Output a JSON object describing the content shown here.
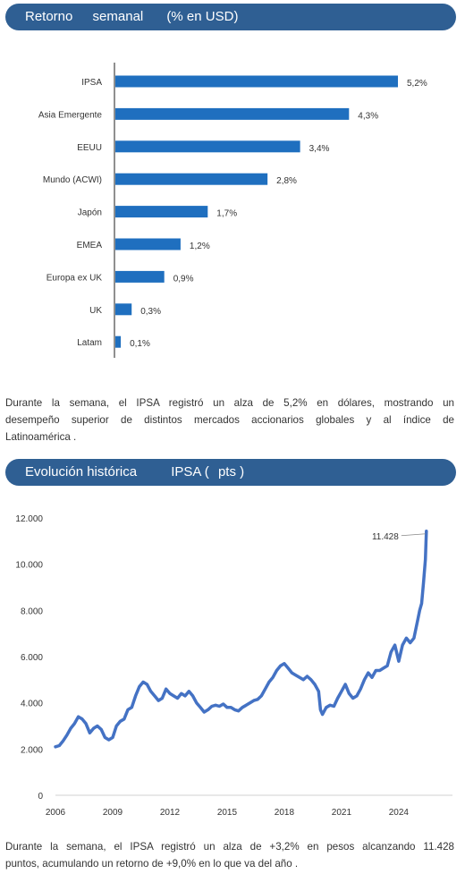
{
  "section1": {
    "title": "Retorno",
    "title2": "semanal",
    "title3": "(% en USD)"
  },
  "section2": {
    "title": "Evolución histórica",
    "title2": "IPSA (",
    "title3": "pts )"
  },
  "text1": {
    "line1": "Durante la semana, el IPSA registró un alza de 5,2% en dólares, mostrando un",
    "line2": "desempeño superior de distintos mercados accionarios globales y al índice de",
    "line3": "Latinoamérica ."
  },
  "text2": {
    "line1": "Durante la semana, el IPSA registró un alza de +3,2% en pesos alcanzando 11.428",
    "line2": "puntos, acumulando un retorno de +9,0% en lo que va del año ."
  },
  "colors": {
    "accent": "#2f5f93",
    "bar": "#1f6fbf",
    "line": "#4472c4"
  },
  "chart_data": [
    {
      "type": "bar",
      "orientation": "horizontal",
      "categories": [
        "IPSA",
        "Asia Emergente",
        "EEUU",
        "Mundo (ACWI)",
        "Japón",
        "EMEA",
        "Europa ex UK",
        "UK",
        "Latam"
      ],
      "values": [
        5.2,
        4.3,
        3.4,
        2.8,
        1.7,
        1.2,
        0.9,
        0.3,
        0.1
      ],
      "labels": [
        "5,2%",
        "4,3%",
        "3,4%",
        "2,8%",
        "1,7%",
        "1,2%",
        "0,9%",
        "0,3%",
        "0,1%"
      ],
      "xlim": [
        0,
        5.2
      ],
      "grid": false
    },
    {
      "type": "line",
      "yticks": [
        "0",
        "2.000",
        "4.000",
        "6.000",
        "8.000",
        "10.000",
        "12.000"
      ],
      "ytick_values": [
        0,
        2000,
        4000,
        6000,
        8000,
        10000,
        12000
      ],
      "xticks": [
        "2006",
        "2009",
        "2012",
        "2015",
        "2018",
        "2021",
        "2024"
      ],
      "xtick_values": [
        2006,
        2009,
        2012,
        2015,
        2018,
        2021,
        2024
      ],
      "ylim": [
        0,
        12000
      ],
      "xlim": [
        2006,
        2025.6
      ],
      "annotation": "11.428",
      "annotation_value": [
        2025.45,
        11428
      ],
      "grid": false,
      "series": [
        {
          "x": [
            2006.0,
            2006.2,
            2006.4,
            2006.6,
            2006.8,
            2007.0,
            2007.2,
            2007.4,
            2007.6,
            2007.8,
            2008.0,
            2008.2,
            2008.4,
            2008.6,
            2008.8,
            2009.0,
            2009.2,
            2009.4,
            2009.6,
            2009.8,
            2010.0,
            2010.2,
            2010.4,
            2010.6,
            2010.8,
            2011.0,
            2011.2,
            2011.4,
            2011.6,
            2011.8,
            2012.0,
            2012.2,
            2012.4,
            2012.6,
            2012.8,
            2013.0,
            2013.2,
            2013.4,
            2013.6,
            2013.8,
            2014.0,
            2014.2,
            2014.4,
            2014.6,
            2014.8,
            2015.0,
            2015.2,
            2015.4,
            2015.6,
            2015.8,
            2016.0,
            2016.2,
            2016.4,
            2016.6,
            2016.8,
            2017.0,
            2017.2,
            2017.4,
            2017.6,
            2017.8,
            2018.0,
            2018.2,
            2018.4,
            2018.6,
            2018.8,
            2019.0,
            2019.2,
            2019.4,
            2019.6,
            2019.8,
            2019.9,
            2020.0,
            2020.2,
            2020.4,
            2020.6,
            2020.8,
            2021.0,
            2021.2,
            2021.4,
            2021.6,
            2021.8,
            2022.0,
            2022.2,
            2022.4,
            2022.6,
            2022.8,
            2023.0,
            2023.2,
            2023.4,
            2023.6,
            2023.8,
            2024.0,
            2024.2,
            2024.4,
            2024.6,
            2024.8,
            2025.0,
            2025.1,
            2025.2,
            2025.3,
            2025.4,
            2025.45
          ],
          "values": [
            2100,
            2150,
            2350,
            2600,
            2900,
            3100,
            3400,
            3300,
            3100,
            2700,
            2900,
            3000,
            2850,
            2500,
            2400,
            2500,
            3000,
            3200,
            3300,
            3700,
            3800,
            4300,
            4700,
            4900,
            4800,
            4500,
            4300,
            4100,
            4200,
            4600,
            4400,
            4300,
            4200,
            4400,
            4300,
            4500,
            4300,
            4000,
            3800,
            3600,
            3700,
            3850,
            3900,
            3850,
            3950,
            3800,
            3800,
            3700,
            3650,
            3800,
            3900,
            4000,
            4100,
            4150,
            4300,
            4600,
            4900,
            5100,
            5400,
            5600,
            5700,
            5500,
            5300,
            5200,
            5100,
            5000,
            5150,
            5000,
            4800,
            4500,
            3700,
            3500,
            3800,
            3900,
            3850,
            4200,
            4500,
            4800,
            4400,
            4200,
            4300,
            4600,
            5000,
            5300,
            5100,
            5400,
            5400,
            5500,
            5600,
            6200,
            6500,
            5800,
            6500,
            6800,
            6600,
            6800,
            7600,
            8000,
            8300,
            9200,
            10200,
            11428
          ]
        }
      ]
    }
  ]
}
